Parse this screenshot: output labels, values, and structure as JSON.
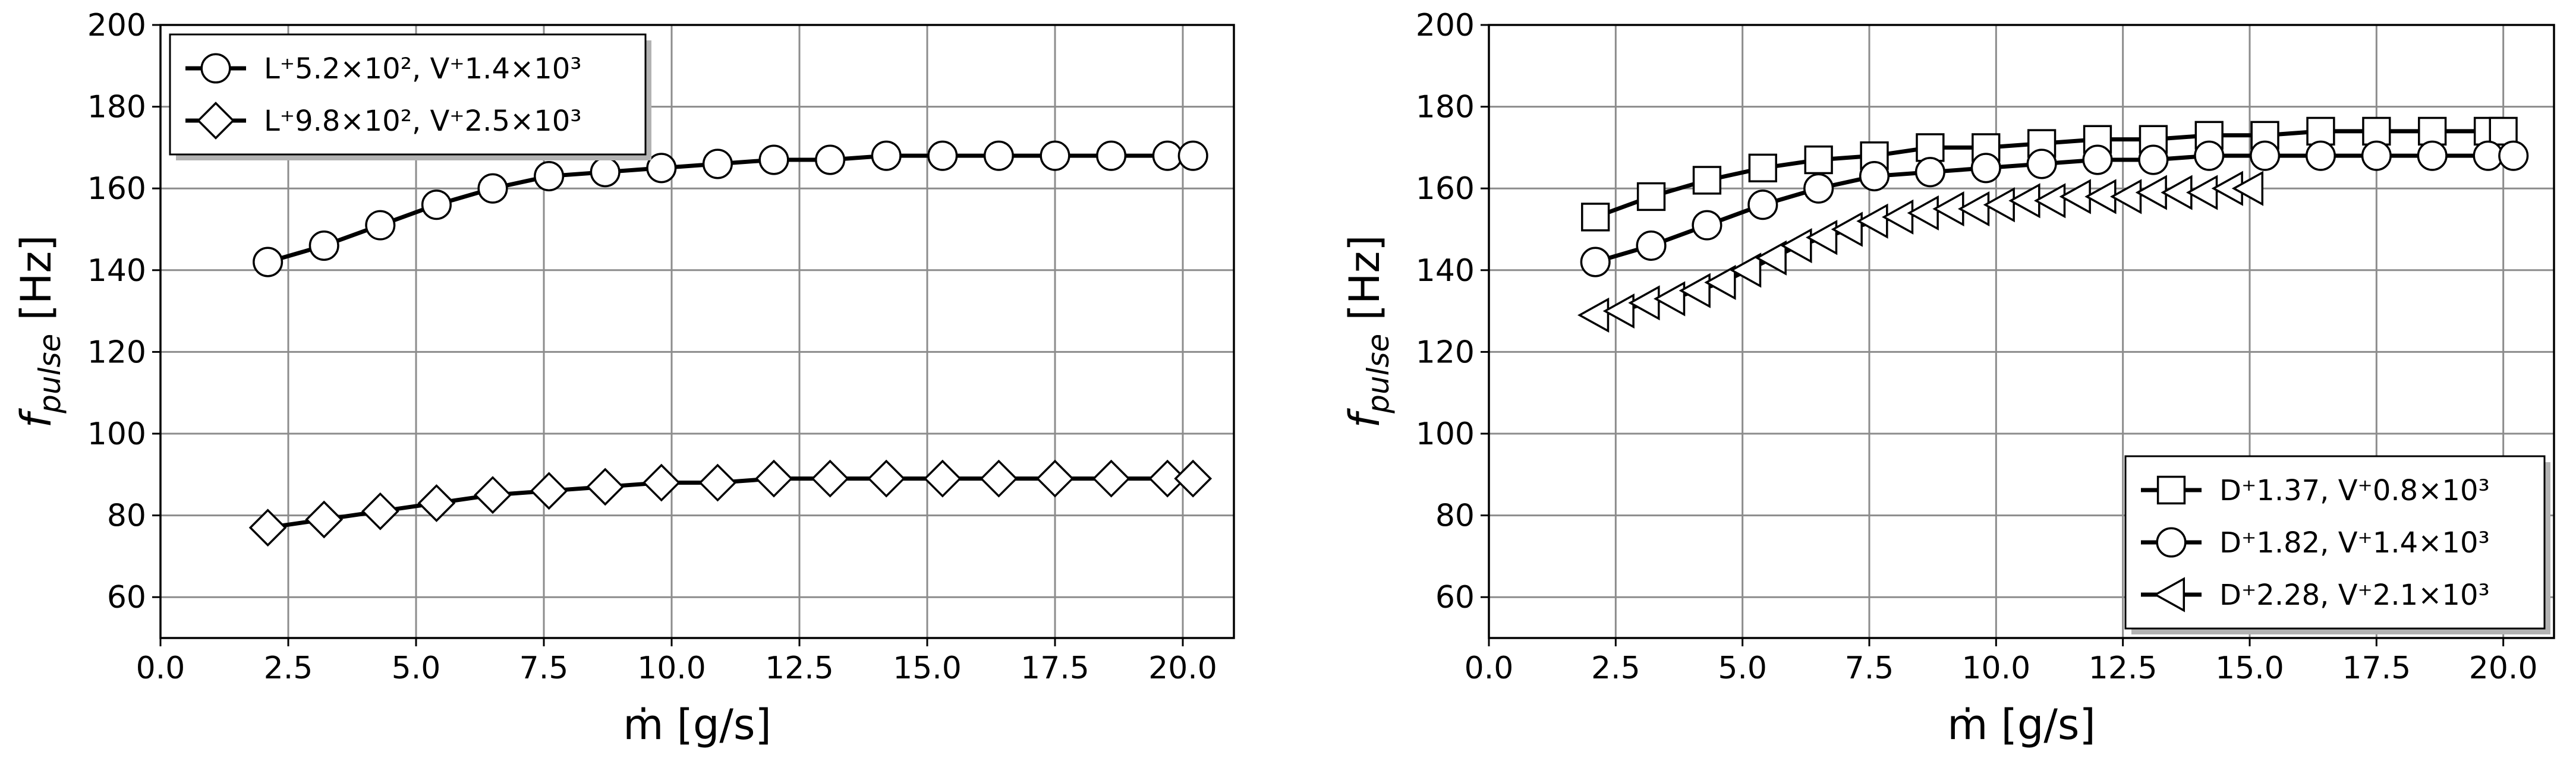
{
  "chart_data": [
    {
      "type": "line",
      "xlabel": "ṁ [g/s]",
      "ylabel": {
        "base": "f",
        "subscript": "pulse",
        "unit": " [Hz]"
      },
      "xlim": [
        0,
        21
      ],
      "ylim": [
        50,
        200
      ],
      "xticks": [
        "0.0",
        "2.5",
        "5.0",
        "7.5",
        "10.0",
        "12.5",
        "15.0",
        "17.5",
        "20.0"
      ],
      "yticks": [
        "60",
        "80",
        "100",
        "120",
        "140",
        "160",
        "180",
        "200"
      ],
      "grid": true,
      "legend_position": "upper-left",
      "series": [
        {
          "name": "L⁺5.2×10², V⁺1.4×10³",
          "marker": "circle",
          "x": [
            2.1,
            3.2,
            4.3,
            5.4,
            6.5,
            7.6,
            8.7,
            9.8,
            10.9,
            12.0,
            13.1,
            14.2,
            15.3,
            16.4,
            17.5,
            18.6,
            19.7,
            20.2
          ],
          "y": [
            142,
            146,
            151,
            156,
            160,
            163,
            164,
            165,
            166,
            167,
            167,
            168,
            168,
            168,
            168,
            168,
            168,
            168
          ]
        },
        {
          "name": "L⁺9.8×10², V⁺2.5×10³",
          "marker": "diamond",
          "x": [
            2.1,
            3.2,
            4.3,
            5.4,
            6.5,
            7.6,
            8.7,
            9.8,
            10.9,
            12.0,
            13.1,
            14.2,
            15.3,
            16.4,
            17.5,
            18.6,
            19.7,
            20.2
          ],
          "y": [
            77,
            79,
            81,
            83,
            85,
            86,
            87,
            88,
            88,
            89,
            89,
            89,
            89,
            89,
            89,
            89,
            89,
            89
          ]
        }
      ]
    },
    {
      "type": "line",
      "xlabel": "ṁ [g/s]",
      "ylabel": {
        "base": "f",
        "subscript": "pulse",
        "unit": " [Hz]"
      },
      "xlim": [
        0,
        21
      ],
      "ylim": [
        50,
        200
      ],
      "xticks": [
        "0.0",
        "2.5",
        "5.0",
        "7.5",
        "10.0",
        "12.5",
        "15.0",
        "17.5",
        "20.0"
      ],
      "yticks": [
        "60",
        "80",
        "100",
        "120",
        "140",
        "160",
        "180",
        "200"
      ],
      "grid": true,
      "legend_position": "lower-right",
      "series": [
        {
          "name": "D⁺1.37, V⁺0.8×10³",
          "marker": "square",
          "x": [
            2.1,
            3.2,
            4.3,
            5.4,
            6.5,
            7.6,
            8.7,
            9.8,
            10.9,
            12.0,
            13.1,
            14.2,
            15.3,
            16.4,
            17.5,
            18.6,
            19.7,
            20.0
          ],
          "y": [
            153,
            158,
            162,
            165,
            167,
            168,
            170,
            170,
            171,
            172,
            172,
            173,
            173,
            174,
            174,
            174,
            174,
            174
          ]
        },
        {
          "name": "D⁺1.82, V⁺1.4×10³",
          "marker": "circle",
          "x": [
            2.1,
            3.2,
            4.3,
            5.4,
            6.5,
            7.6,
            8.7,
            9.8,
            10.9,
            12.0,
            13.1,
            14.2,
            15.3,
            16.4,
            17.5,
            18.6,
            19.7,
            20.2
          ],
          "y": [
            142,
            146,
            151,
            156,
            160,
            163,
            164,
            165,
            166,
            167,
            167,
            168,
            168,
            168,
            168,
            168,
            168,
            168
          ]
        },
        {
          "name": "D⁺2.28, V⁺2.1×10³",
          "marker": "triangle-left",
          "x": [
            2.1,
            2.6,
            3.1,
            3.6,
            4.1,
            4.6,
            5.1,
            5.6,
            6.1,
            6.6,
            7.1,
            7.6,
            8.1,
            8.6,
            9.1,
            9.6,
            10.1,
            10.6,
            11.1,
            11.6,
            12.1,
            12.6,
            13.1,
            13.6,
            14.1,
            14.6,
            15.0
          ],
          "y": [
            129,
            130,
            132,
            133,
            135,
            137,
            140,
            143,
            146,
            148,
            150,
            152,
            153,
            154,
            155,
            155,
            156,
            157,
            157,
            158,
            158,
            158,
            159,
            159,
            159,
            160,
            160
          ]
        }
      ]
    }
  ]
}
